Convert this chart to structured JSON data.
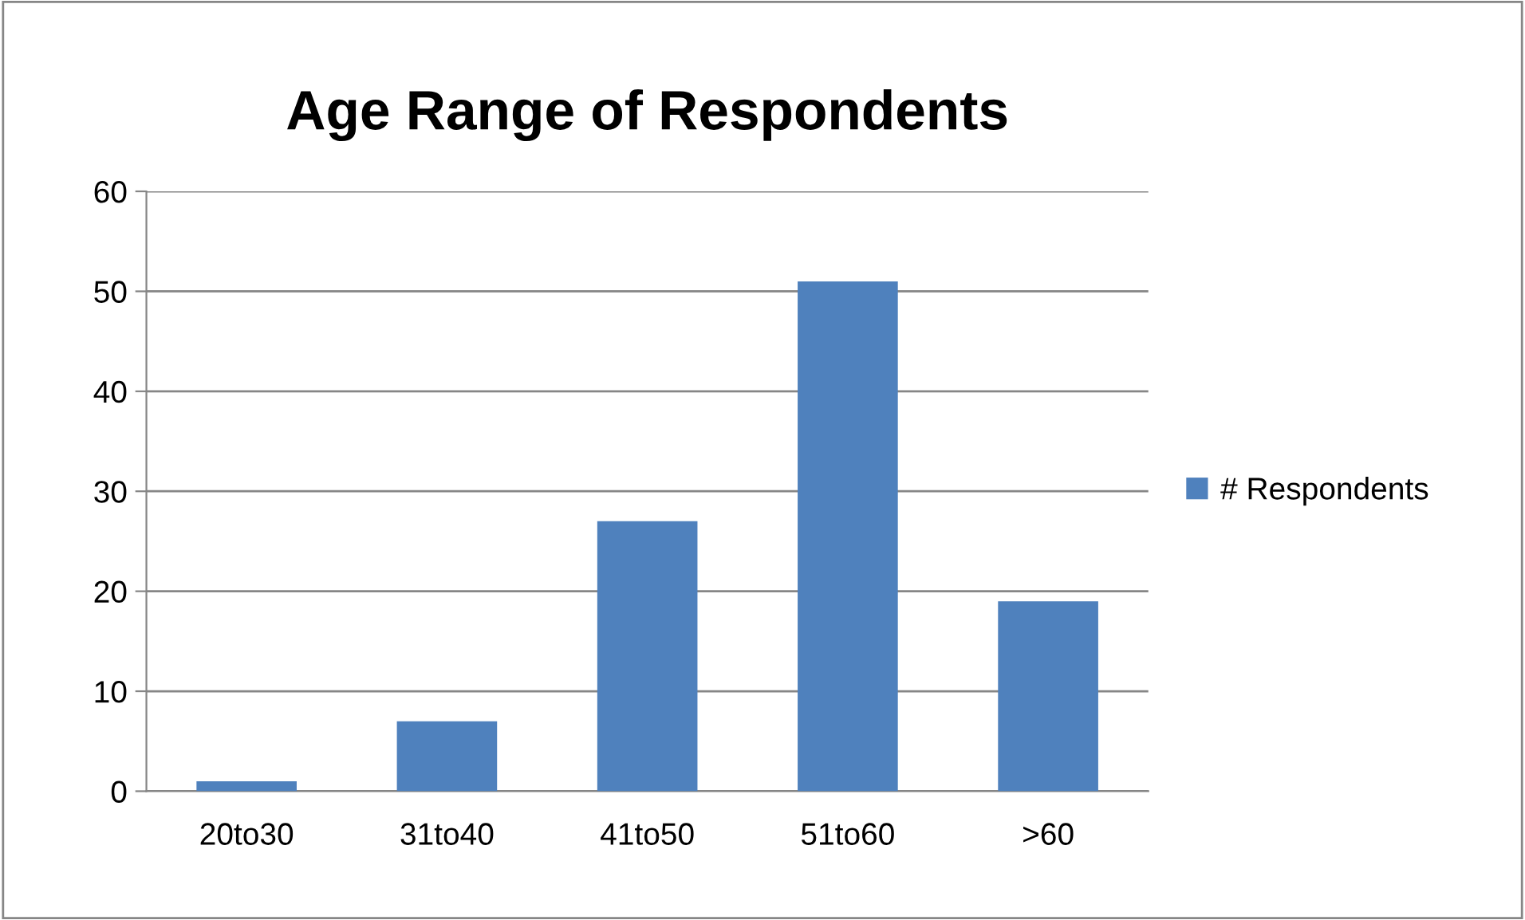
{
  "chart_data": {
    "type": "bar",
    "title": "Age Range of Respondents",
    "categories": [
      "20to30",
      "31to40",
      "41to50",
      "51to60",
      ">60"
    ],
    "series": [
      {
        "name": "# Respondents",
        "color": "#4f81bd",
        "values": [
          1,
          7,
          27,
          51,
          19
        ]
      }
    ],
    "ylim": [
      0,
      60
    ],
    "yticks": [
      0,
      10,
      20,
      30,
      40,
      50,
      60
    ],
    "grid": "y",
    "legend": "right"
  }
}
